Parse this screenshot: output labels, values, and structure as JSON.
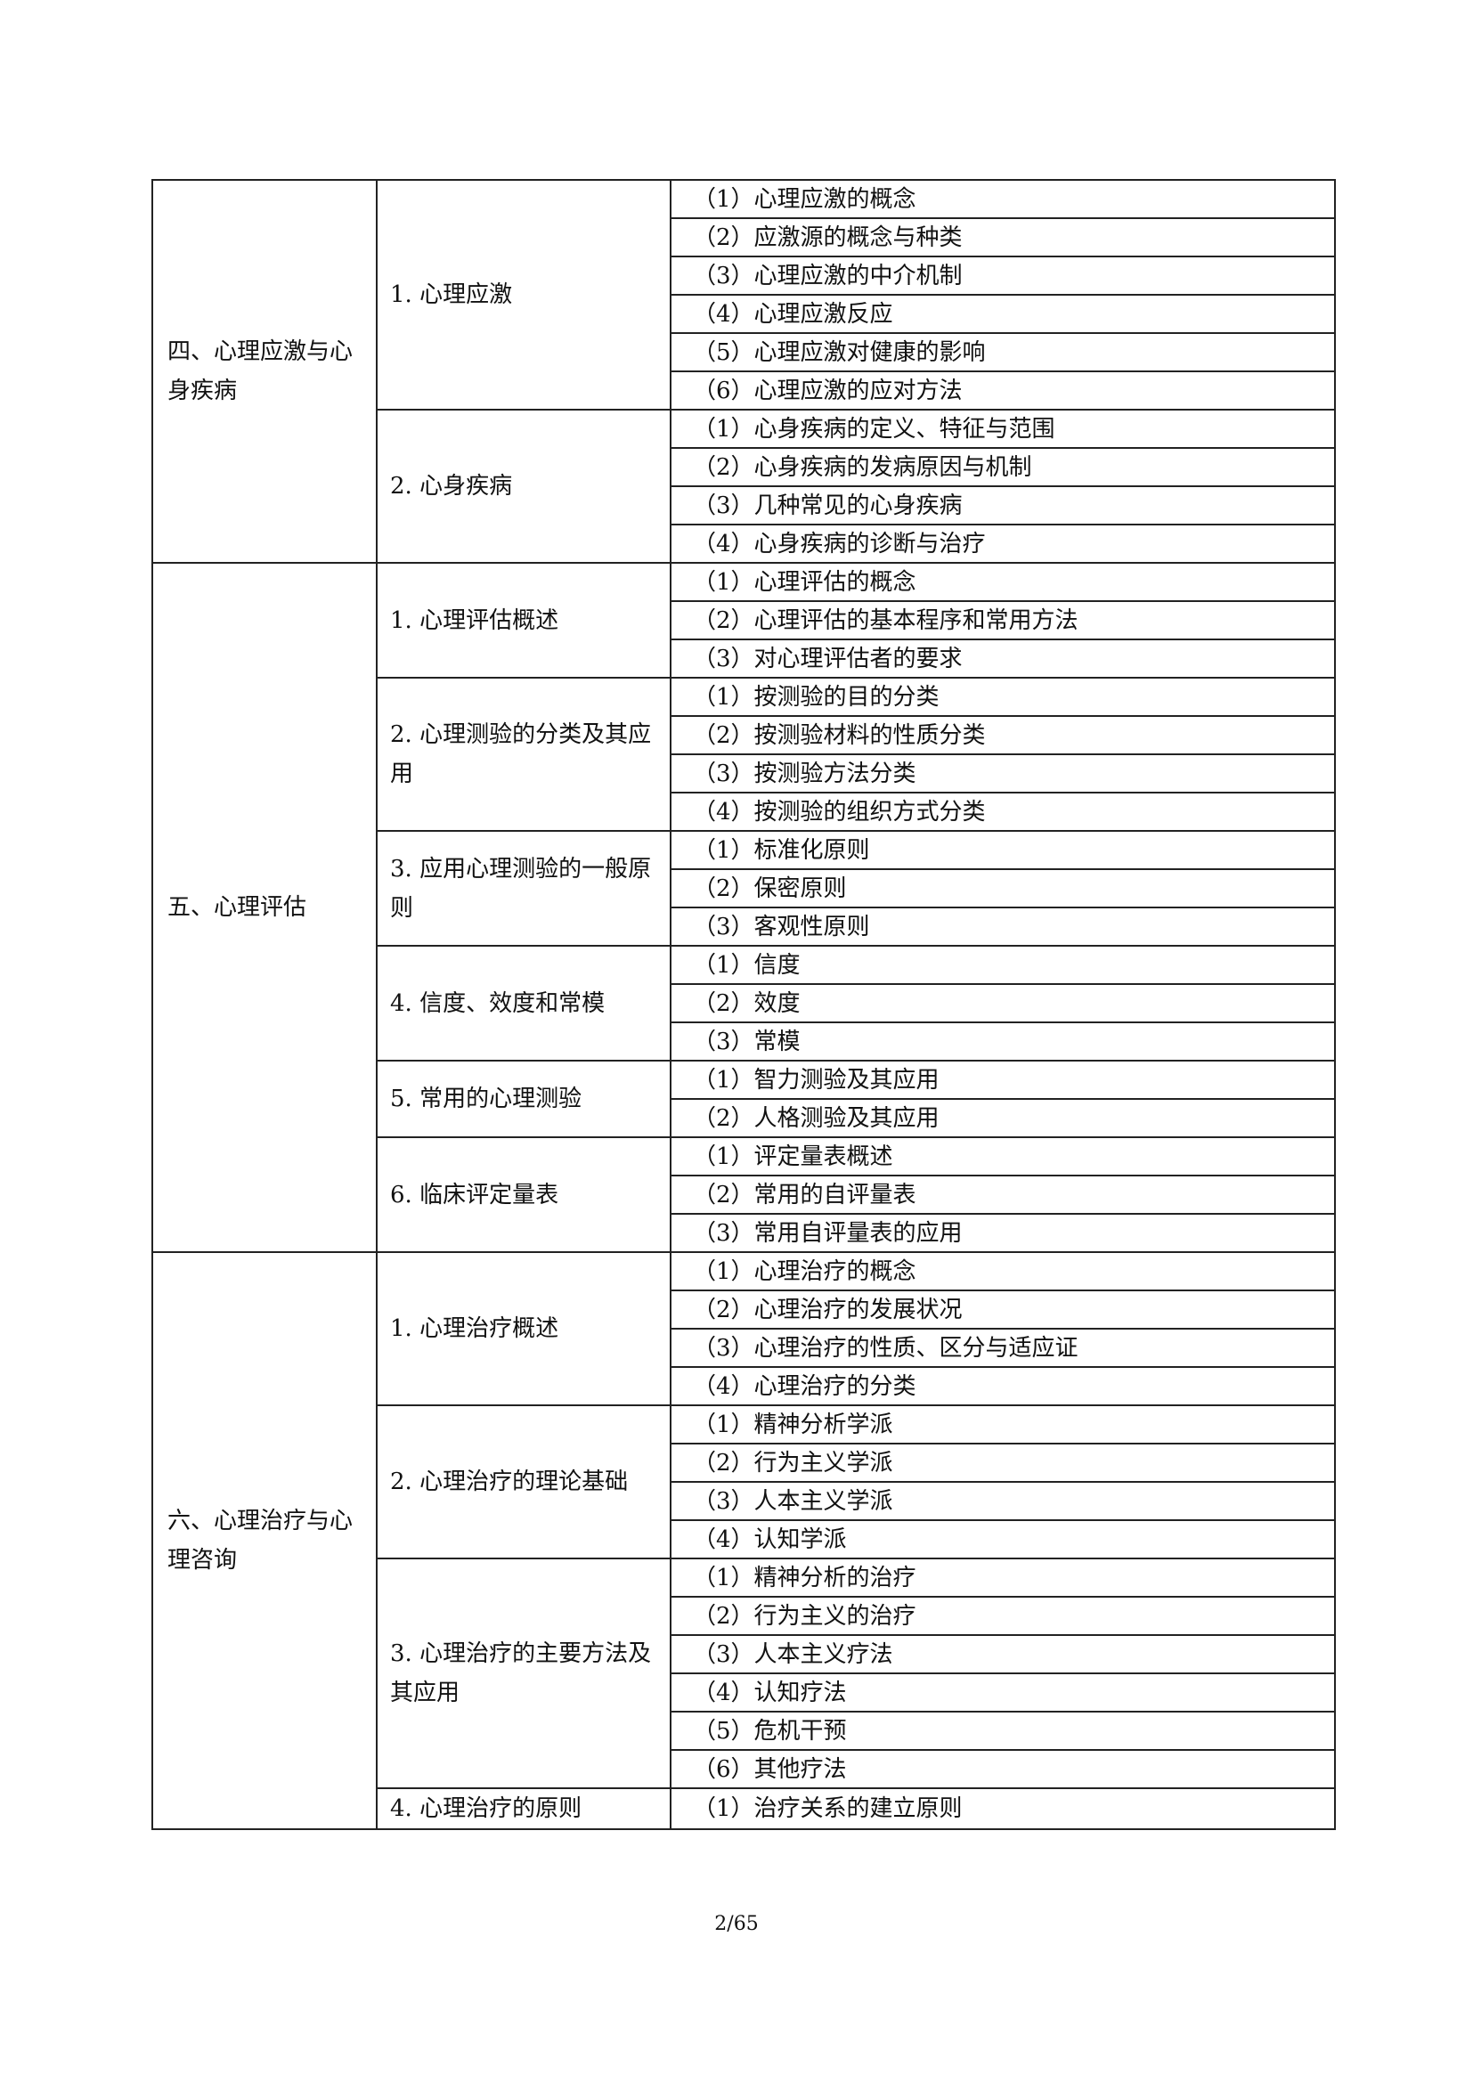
{
  "sections": [
    {
      "name": "四、心理应激与心身疾病",
      "topics": [
        {
          "name": "1. 心理应激",
          "items": [
            "（1）心理应激的概念",
            "（2）应激源的概念与种类",
            "（3）心理应激的中介机制",
            "（4）心理应激反应",
            "（5）心理应激对健康的影响",
            "（6）心理应激的应对方法"
          ]
        },
        {
          "name": "2. 心身疾病",
          "items": [
            "（1）心身疾病的定义、特征与范围",
            "（2）心身疾病的发病原因与机制",
            "（3）几种常见的心身疾病",
            "（4）心身疾病的诊断与治疗"
          ]
        }
      ]
    },
    {
      "name": "五、心理评估",
      "topics": [
        {
          "name": "1. 心理评估概述",
          "items": [
            "（1）心理评估的概念",
            "（2）心理评估的基本程序和常用方法",
            "（3）对心理评估者的要求"
          ]
        },
        {
          "name": "2. 心理测验的分类及其应用",
          "items": [
            "（1）按测验的目的分类",
            "（2）按测验材料的性质分类",
            "（3）按测验方法分类",
            "（4）按测验的组织方式分类"
          ]
        },
        {
          "name": "3. 应用心理测验的一般原则",
          "items": [
            "（1）标准化原则",
            "（2）保密原则",
            "（3）客观性原则"
          ]
        },
        {
          "name": "4. 信度、效度和常模",
          "items": [
            "（1）信度",
            "（2）效度",
            "（3）常模"
          ]
        },
        {
          "name": "5. 常用的心理测验",
          "items": [
            "（1）智力测验及其应用",
            "（2）人格测验及其应用"
          ]
        },
        {
          "name": "6. 临床评定量表",
          "items": [
            "（1）评定量表概述",
            "（2）常用的自评量表",
            "（3）常用自评量表的应用"
          ]
        }
      ]
    },
    {
      "name": "六、心理治疗与心理咨询",
      "topics": [
        {
          "name": "1. 心理治疗概述",
          "items": [
            "（1）心理治疗的概念",
            "（2）心理治疗的发展状况",
            "（3）心理治疗的性质、区分与适应证",
            "（4）心理治疗的分类"
          ]
        },
        {
          "name": "2. 心理治疗的理论基础",
          "items": [
            "（1）精神分析学派",
            "（2）行为主义学派",
            "（3）人本主义学派",
            "（4）认知学派"
          ]
        },
        {
          "name": "3. 心理治疗的主要方法及其应用",
          "items": [
            "（1）精神分析的治疗",
            "（2）行为主义的治疗",
            "（3）人本主义疗法",
            "（4）认知疗法",
            "（5）危机干预",
            "（6）其他疗法"
          ]
        },
        {
          "name": "4. 心理治疗的原则",
          "items": [
            "（1）治疗关系的建立原则"
          ]
        }
      ]
    }
  ],
  "page_number": "2/65"
}
